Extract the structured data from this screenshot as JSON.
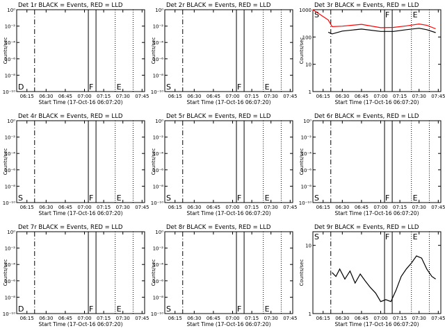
{
  "chart_data": [
    {
      "type": "line",
      "title": "Det 1r BLACK = Events, RED = LLD",
      "xlabel": "Start Time (17-Oct-16 06:07:20)",
      "ylabel": "Counts/sec",
      "y_scale": "log",
      "ytick_labels": [
        "10⁰",
        "10⁻²",
        "10⁻⁴",
        "10⁻⁶",
        "10⁻⁸",
        "10⁻¹⁰"
      ],
      "x_ticks": [
        "06:15",
        "06:30",
        "06:45",
        "07:00",
        "07:15",
        "07:30",
        "07:45"
      ],
      "markers": [
        "D",
        "F",
        "E"
      ],
      "series": []
    },
    {
      "type": "line",
      "title": "Det 2r BLACK = Events, RED = LLD",
      "xlabel": "Start Time (17-Oct-16 06:07:20)",
      "ylabel": "Counts/sec",
      "y_scale": "log",
      "ytick_labels": [
        "10⁰",
        "10⁻²",
        "10⁻⁴",
        "10⁻⁶",
        "10⁻⁸",
        "10⁻¹⁰"
      ],
      "x_ticks": [
        "06:15",
        "06:30",
        "06:45",
        "07:00",
        "07:15",
        "07:30",
        "07:45"
      ],
      "markers": [
        "S",
        "F",
        "E"
      ],
      "series": []
    },
    {
      "type": "line",
      "title": "Det 3r BLACK = Events, RED = LLD",
      "xlabel": "Start Time (17-Oct-16 06:07:20)",
      "ylabel": "Counts/sec",
      "y_scale": "log",
      "ytick_labels": [
        "1",
        "10",
        "100",
        "1000"
      ],
      "x_ticks": [
        "06:15",
        "06:30",
        "06:45",
        "07:00",
        "07:15",
        "07:30",
        "07:45"
      ],
      "markers": [
        "S",
        "F",
        "E"
      ],
      "series": [
        {
          "color": "#ff0000",
          "x": [
            "06:07",
            "06:19",
            "06:22",
            "06:30",
            "06:45",
            "07:00",
            "07:10",
            "07:20",
            "07:30",
            "07:36",
            "07:43"
          ],
          "values": [
            1000,
            420,
            240,
            250,
            290,
            220,
            225,
            255,
            300,
            270,
            200
          ]
        },
        {
          "color": "#000000",
          "x": [
            "06:19",
            "06:22",
            "06:30",
            "06:45",
            "07:00",
            "07:10",
            "07:20",
            "07:30",
            "07:36",
            "07:43"
          ],
          "values": [
            150,
            130,
            165,
            195,
            160,
            160,
            185,
            210,
            185,
            145
          ]
        }
      ]
    },
    {
      "type": "line",
      "title": "Det 4r BLACK = Events, RED = LLD",
      "xlabel": "Start Time (17-Oct-16 06:07:20)",
      "ylabel": "Counts/sec",
      "y_scale": "log",
      "ytick_labels": [
        "10⁰",
        "10⁻²",
        "10⁻⁴",
        "10⁻⁶",
        "10⁻⁸",
        "10⁻¹⁰"
      ],
      "x_ticks": [
        "06:15",
        "06:30",
        "06:45",
        "07:00",
        "07:15",
        "07:30",
        "07:45"
      ],
      "markers": [
        "S",
        "F",
        "E"
      ],
      "series": []
    },
    {
      "type": "line",
      "title": "Det 5r BLACK = Events, RED = LLD",
      "xlabel": "Start Time (17-Oct-16 06:07:20)",
      "ylabel": "Counts/sec",
      "y_scale": "log",
      "ytick_labels": [
        "10⁰",
        "10⁻²",
        "10⁻⁴",
        "10⁻⁶",
        "10⁻⁸",
        "10⁻¹⁰"
      ],
      "x_ticks": [
        "06:15",
        "06:30",
        "06:45",
        "07:00",
        "07:15",
        "07:30",
        "07:45"
      ],
      "markers": [
        "S",
        "F",
        "E"
      ],
      "series": []
    },
    {
      "type": "line",
      "title": "Det 6r BLACK = Events, RED = LLD",
      "xlabel": "Start Time (17-Oct-16 06:07:20)",
      "ylabel": "Counts/sec",
      "y_scale": "log",
      "ytick_labels": [
        "10⁰",
        "10⁻²",
        "10⁻⁴",
        "10⁻⁶",
        "10⁻⁸",
        "10⁻¹⁰"
      ],
      "x_ticks": [
        "06:15",
        "06:30",
        "06:45",
        "07:00",
        "07:15",
        "07:30",
        "07:45"
      ],
      "markers": [
        "S",
        "F",
        "E"
      ],
      "series": []
    },
    {
      "type": "line",
      "title": "Det 7r BLACK = Events, RED = LLD",
      "xlabel": "Start Time (17-Oct-16 06:07:20)",
      "ylabel": "Counts/sec",
      "y_scale": "log",
      "ytick_labels": [
        "10⁰",
        "10⁻²",
        "10⁻⁴",
        "10⁻⁶",
        "10⁻⁸",
        "10⁻¹⁰"
      ],
      "x_ticks": [
        "06:15",
        "06:30",
        "06:45",
        "07:00",
        "07:15",
        "07:30",
        "07:45"
      ],
      "markers": [
        "D",
        "F",
        "E"
      ],
      "series": []
    },
    {
      "type": "line",
      "title": "Det 8r BLACK = Events, RED = LLD",
      "xlabel": "Start Time (17-Oct-16 06:07:20)",
      "ylabel": "Counts/sec",
      "y_scale": "log",
      "ytick_labels": [
        "10⁰",
        "10⁻²",
        "10⁻⁴",
        "10⁻⁶",
        "10⁻⁸",
        "10⁻¹⁰"
      ],
      "x_ticks": [
        "06:15",
        "06:30",
        "06:45",
        "07:00",
        "07:15",
        "07:30",
        "07:45"
      ],
      "markers": [
        "S",
        "F",
        "E"
      ],
      "series": []
    },
    {
      "type": "line",
      "title": "Det 9r BLACK = Events, RED = LLD",
      "xlabel": "Start Time (17-Oct-16 06:07:20)",
      "ylabel": "Counts/sec",
      "y_scale": "log",
      "ytick_labels": [
        "1",
        "10"
      ],
      "x_ticks": [
        "06:15",
        "06:30",
        "06:45",
        "07:00",
        "07:15",
        "07:30",
        "07:45"
      ],
      "markers": [
        "S",
        "F",
        "E"
      ],
      "series": [
        {
          "color": "#000000",
          "x": [
            "06:22",
            "06:25",
            "06:28",
            "06:32",
            "06:36",
            "06:40",
            "06:44",
            "06:48",
            "06:52",
            "06:56",
            "07:00",
            "07:04",
            "07:08",
            "07:12",
            "07:16",
            "07:20",
            "07:24",
            "07:28",
            "07:32",
            "07:36",
            "07:40",
            "07:43"
          ],
          "values": [
            4.0,
            3.5,
            4.5,
            3.2,
            4.2,
            2.8,
            3.8,
            3.0,
            2.4,
            2.0,
            1.5,
            1.6,
            1.5,
            2.2,
            3.5,
            4.5,
            5.5,
            7.0,
            6.5,
            4.5,
            3.5,
            3.2
          ]
        }
      ]
    }
  ]
}
